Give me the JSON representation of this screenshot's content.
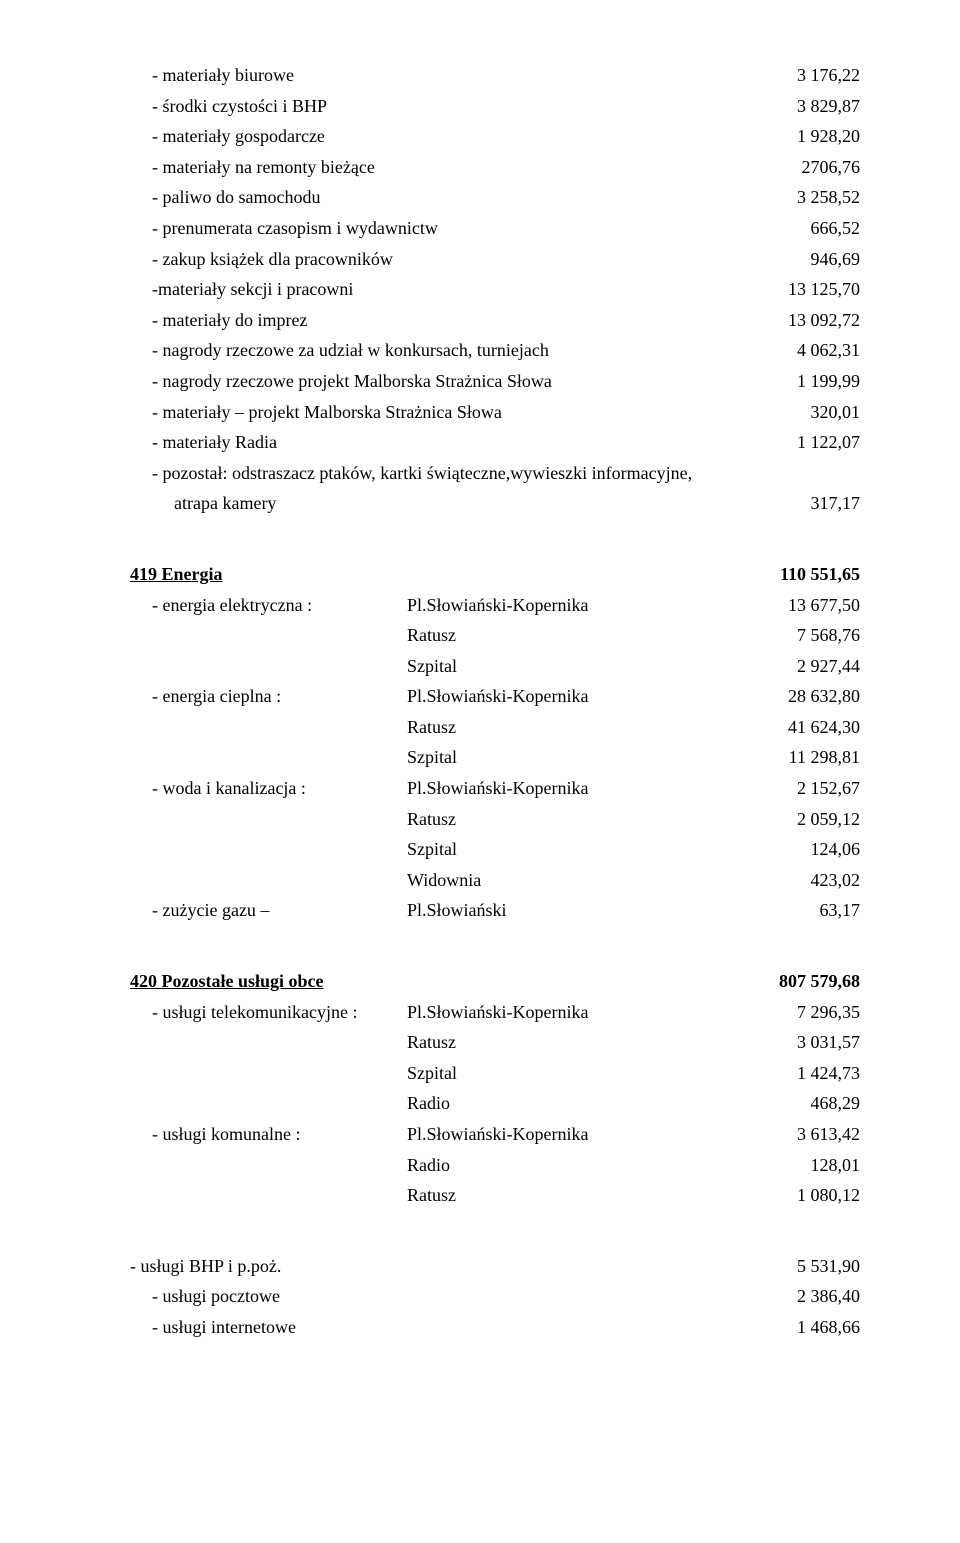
{
  "items": [
    {
      "label": "- materiały biurowe",
      "value": "3 176,22",
      "indent": 1
    },
    {
      "label": "- środki czystości i BHP",
      "value": "3 829,87",
      "indent": 1
    },
    {
      "label": "- materiały gospodarcze",
      "value": "1 928,20",
      "indent": 1
    },
    {
      "label": "- materiały na remonty bieżące",
      "value": "2706,76",
      "indent": 1
    },
    {
      "label": "- paliwo do samochodu",
      "value": "3 258,52",
      "indent": 1
    },
    {
      "label": "- prenumerata czasopism i wydawnictw",
      "value": "666,52",
      "indent": 1
    },
    {
      "label": "- zakup książek dla pracowników",
      "value": "946,69",
      "indent": 1
    },
    {
      "label": "-materiały sekcji i pracowni",
      "value": "13 125,70",
      "indent": 1
    },
    {
      "label": "- materiały do imprez",
      "value": "13 092,72",
      "indent": 1
    },
    {
      "label": "- nagrody rzeczowe za udział w konkursach, turniejach",
      "value": "4 062,31",
      "indent": 1
    },
    {
      "label": "- nagrody rzeczowe projekt Malborska Strażnica Słowa",
      "value": "1 199,99",
      "indent": 1
    },
    {
      "label": "- materiały – projekt Malborska Strażnica Słowa",
      "value": "320,01",
      "indent": 1
    },
    {
      "label": "- materiały Radia",
      "value": "1 122,07",
      "indent": 1
    },
    {
      "label": "- pozostał: odstraszacz ptaków, kartki świąteczne,wywieszki informacyjne,",
      "value": "",
      "indent": 1
    },
    {
      "label": "atrapa kamery",
      "value": "317,17",
      "indent": 2
    }
  ],
  "section419": {
    "title": "419 Energia",
    "total": "110 551,65",
    "rows": [
      {
        "c1": "- energia elektryczna  :",
        "c2": "Pl.Słowiański-Kopernika",
        "v": "13 677,50"
      },
      {
        "c1": "",
        "c2": "Ratusz",
        "v": "7 568,76"
      },
      {
        "c1": "",
        "c2": "Szpital",
        "v": "2 927,44"
      },
      {
        "c1": "- energia cieplna  :",
        "c2": "Pl.Słowiański-Kopernika",
        "v": "28 632,80"
      },
      {
        "c1": "",
        "c2": "Ratusz",
        "v": "41 624,30"
      },
      {
        "c1": "",
        "c2": "Szpital",
        "v": "11 298,81"
      },
      {
        "c1": "- woda i kanalizacja :",
        "c2": "Pl.Słowiański-Kopernika",
        "v": "2 152,67"
      },
      {
        "c1": "",
        "c2": "Ratusz",
        "v": "2 059,12"
      },
      {
        "c1": "",
        "c2": "Szpital",
        "v": "124,06"
      },
      {
        "c1": "",
        "c2": "Widownia",
        "v": "423,02"
      },
      {
        "c1": "- zużycie gazu –",
        "c2": "Pl.Słowiański",
        "v": "63,17"
      }
    ]
  },
  "section420": {
    "title": "420 Pozostałe usługi obce",
    "total": "807 579,68",
    "rows": [
      {
        "c1": "- usługi telekomunikacyjne :",
        "c2": "Pl.Słowiański-Kopernika",
        "v": "7 296,35"
      },
      {
        "c1": "",
        "c2": "Ratusz",
        "v": "3 031,57"
      },
      {
        "c1": "",
        "c2": "Szpital",
        "v": "1 424,73"
      },
      {
        "c1": "",
        "c2": "Radio",
        "v": "468,29"
      },
      {
        "c1": "- usługi komunalne :",
        "c2": "Pl.Słowiański-Kopernika",
        "v": "3 613,42"
      },
      {
        "c1": "",
        "c2": "Radio",
        "v": "128,01"
      },
      {
        "c1": "",
        "c2": "Ratusz",
        "v": "1 080,12"
      }
    ],
    "tail": [
      {
        "label": "- usługi BHP i p.poż.",
        "value": "5 531,90",
        "indent": 0
      },
      {
        "label": "- usługi pocztowe",
        "value": "2 386,40",
        "indent": 1
      },
      {
        "label": "- usługi internetowe",
        "value": "1 468,66",
        "indent": 1
      }
    ]
  }
}
